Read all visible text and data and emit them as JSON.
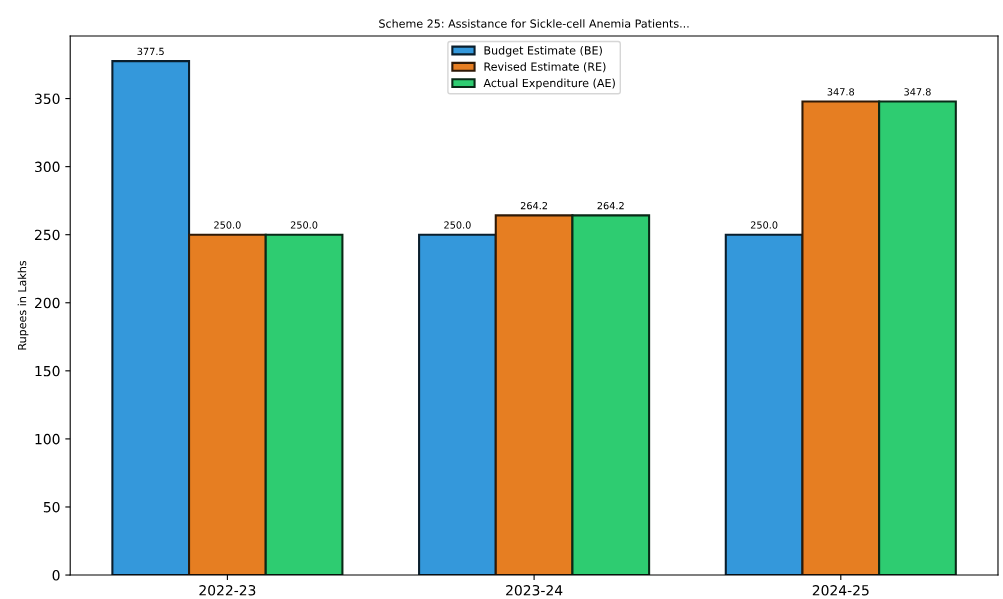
{
  "chart_data": {
    "type": "bar",
    "title": "Scheme 25: Assistance for Sickle-cell Anemia Patients...",
    "ylabel": "Rupees in Lakhs",
    "categories": [
      "2022-23",
      "2023-24",
      "2024-25"
    ],
    "series": [
      {
        "name": "Budget Estimate (BE)",
        "color": "#3498db",
        "values": [
          377.5,
          250.0,
          250.0
        ],
        "value_labels": [
          "377.5",
          "250.0",
          "250.0"
        ]
      },
      {
        "name": "Revised Estimate (RE)",
        "color": "#e67e22",
        "values": [
          250.0,
          264.2,
          347.8
        ],
        "value_labels": [
          "250.0",
          "264.2",
          "347.8"
        ]
      },
      {
        "name": "Actual Expenditure (AE)",
        "color": "#2ecc71",
        "values": [
          250.0,
          264.2,
          347.8
        ],
        "value_labels": [
          "250.0",
          "264.2",
          "347.8"
        ]
      }
    ],
    "ylim": [
      0,
      396
    ],
    "yticks": [
      0,
      50,
      100,
      150,
      200,
      250,
      300,
      350
    ],
    "grid": false,
    "legend": "top"
  }
}
